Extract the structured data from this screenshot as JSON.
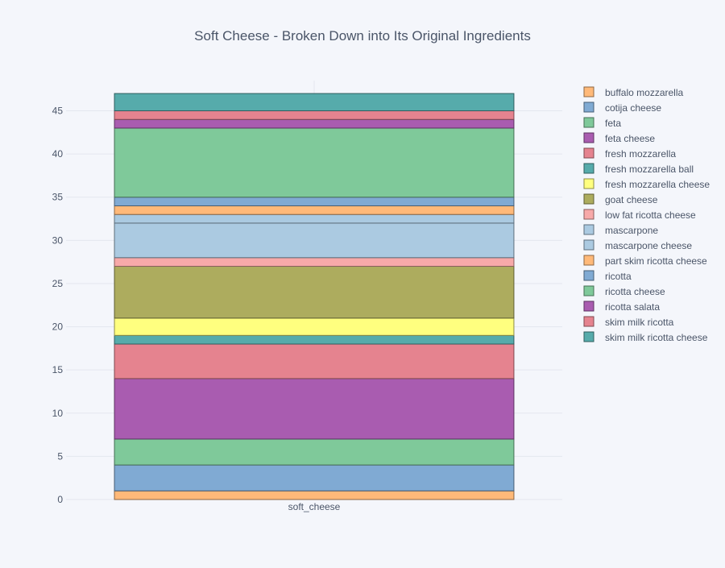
{
  "chart_data": {
    "type": "bar",
    "title": "Soft Cheese - Broken Down into Its Original Ingredients",
    "xlabel": "",
    "ylabel": "",
    "categories": [
      "soft_cheese"
    ],
    "ylim": [
      0,
      48.5
    ],
    "yticks": [
      0,
      5,
      10,
      15,
      20,
      25,
      30,
      35,
      40,
      45
    ],
    "grid": true,
    "legend_position": "right",
    "stacked": true,
    "series": [
      {
        "name": "buffalo mozzarella",
        "values": [
          1
        ],
        "color": "#ffb979"
      },
      {
        "name": "cotija cheese",
        "values": [
          3
        ],
        "color": "#80aad3"
      },
      {
        "name": "feta",
        "values": [
          3
        ],
        "color": "#7fc99a"
      },
      {
        "name": "feta cheese",
        "values": [
          7
        ],
        "color": "#a95cb0"
      },
      {
        "name": "fresh mozzarella",
        "values": [
          4
        ],
        "color": "#e5838f"
      },
      {
        "name": "fresh mozzarella ball",
        "values": [
          1
        ],
        "color": "#56abab"
      },
      {
        "name": "fresh mozzarella cheese",
        "values": [
          2
        ],
        "color": "#ffff7f"
      },
      {
        "name": "goat cheese",
        "values": [
          6
        ],
        "color": "#adac5e"
      },
      {
        "name": "low fat ricotta cheese",
        "values": [
          1
        ],
        "color": "#f7a9a9"
      },
      {
        "name": "mascarpone",
        "values": [
          4
        ],
        "color": "#abcae1"
      },
      {
        "name": "mascarpone cheese",
        "values": [
          1
        ],
        "color": "#abcae1"
      },
      {
        "name": "part skim ricotta cheese",
        "values": [
          1
        ],
        "color": "#ffb979"
      },
      {
        "name": "ricotta",
        "values": [
          1
        ],
        "color": "#80aad3"
      },
      {
        "name": "ricotta cheese",
        "values": [
          8
        ],
        "color": "#7fc99a"
      },
      {
        "name": "ricotta salata",
        "values": [
          1
        ],
        "color": "#a95cb0"
      },
      {
        "name": "skim milk ricotta",
        "values": [
          1
        ],
        "color": "#e5838f"
      },
      {
        "name": "skim milk ricotta cheese",
        "values": [
          2
        ],
        "color": "#56abab"
      }
    ]
  }
}
